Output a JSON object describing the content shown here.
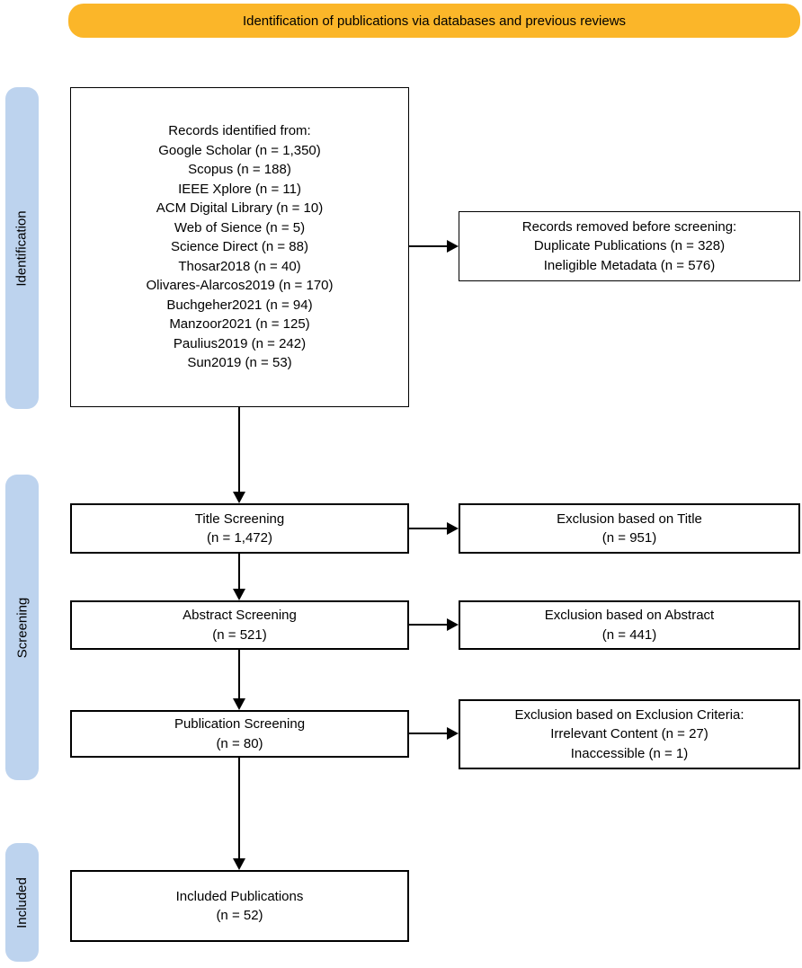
{
  "banner": {
    "label": "Identification of publications via databases and previous reviews"
  },
  "colors": {
    "banner_bg": "#FBB629",
    "stage_bg": "#BDD3EE",
    "box_border": "#000000",
    "arrow": "#000000"
  },
  "stages": [
    {
      "label": "Identification"
    },
    {
      "label": "Screening"
    },
    {
      "label": "Included"
    }
  ],
  "boxes": {
    "records_identified": {
      "lines": [
        "Records identified from:",
        "Google Scholar (n = 1,350)",
        "Scopus (n = 188)",
        "IEEE Xplore (n = 11)",
        "ACM Digital Library (n = 10)",
        "Web of Sience (n = 5)",
        "Science Direct (n = 88)",
        "Thosar2018 (n = 40)",
        "Olivares-Alarcos2019 (n = 170)",
        "Buchgeher2021 (n = 94)",
        "Manzoor2021 (n = 125)",
        "Paulius2019 (n = 242)",
        "Sun2019 (n = 53)"
      ]
    },
    "records_removed": {
      "lines": [
        "Records removed before screening:",
        "Duplicate Publications (n = 328)",
        "Ineligible Metadata (n = 576)"
      ]
    },
    "title_screening": {
      "lines": [
        "Title Screening",
        "(n = 1,472)"
      ]
    },
    "exclusion_title": {
      "lines": [
        "Exclusion based on Title",
        "(n = 951)"
      ]
    },
    "abstract_screening": {
      "lines": [
        "Abstract Screening",
        "(n = 521)"
      ]
    },
    "exclusion_abstract": {
      "lines": [
        "Exclusion based on Abstract",
        "(n = 441)"
      ]
    },
    "publication_screening": {
      "lines": [
        "Publication Screening",
        "(n = 80)"
      ]
    },
    "exclusion_criteria": {
      "lines": [
        "Exclusion based on Exclusion Criteria:",
        "Irrelevant Content (n = 27)",
        "Inaccessible (n = 1)"
      ]
    },
    "included_publications": {
      "lines": [
        "Included Publications",
        "(n = 52)"
      ]
    }
  }
}
